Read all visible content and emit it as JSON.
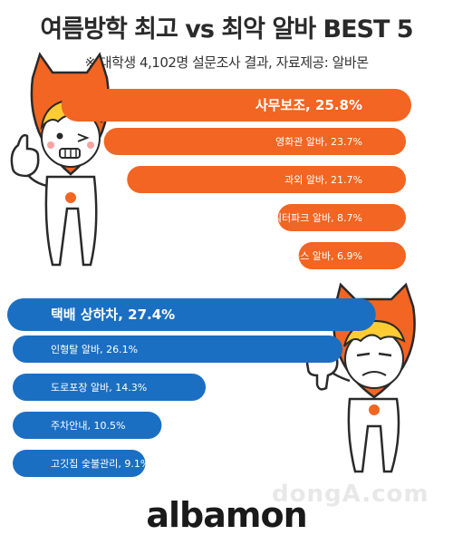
{
  "title": "여름방학 최고 vs 최악 알바 BEST 5",
  "subtitle": "※ 대학생 4,102명 설문조사 결과, 자료제공: 알바몬",
  "watermark": "dongA.com",
  "logo": "albamon",
  "colors": {
    "best": "#f26522",
    "worst": "#1b6fc2",
    "mascot": "#f26522",
    "hair": "#ffcc33"
  },
  "icons": [
    "thumbs-up-mascot-icon",
    "thumbs-down-mascot-icon"
  ],
  "chart_data": [
    {
      "type": "bar",
      "orientation": "horizontal",
      "categories": [
        "사무보조",
        "영화관 알바",
        "과외 알바",
        "워터파크 알바",
        "게스트하우스 알바"
      ],
      "values": [
        25.8,
        23.7,
        21.7,
        8.7,
        6.9
      ],
      "labels": [
        "사무보조, 25.8%",
        "영화관 알바, 23.7%",
        "과외 알바, 21.7%",
        "워터파크 알바, 8.7%",
        "게스트하우스 알바, 6.9%"
      ],
      "bar_color": "#f26522",
      "bar_origin": "right"
    },
    {
      "type": "bar",
      "orientation": "horizontal",
      "categories": [
        "택배 상하차",
        "인형탈 알바",
        "도로포장 알바",
        "주차안내",
        "고깃집 숯불관리"
      ],
      "values": [
        27.4,
        26.1,
        14.3,
        10.5,
        9.1
      ],
      "labels": [
        "택배 상하차, 27.4%",
        "인형탈 알바, 26.1%",
        "도로포장 알바, 14.3%",
        "주차안내, 10.5%",
        "고깃집 숯불관리, 9.1%"
      ],
      "bar_color": "#1b6fc2",
      "bar_origin": "left"
    }
  ]
}
